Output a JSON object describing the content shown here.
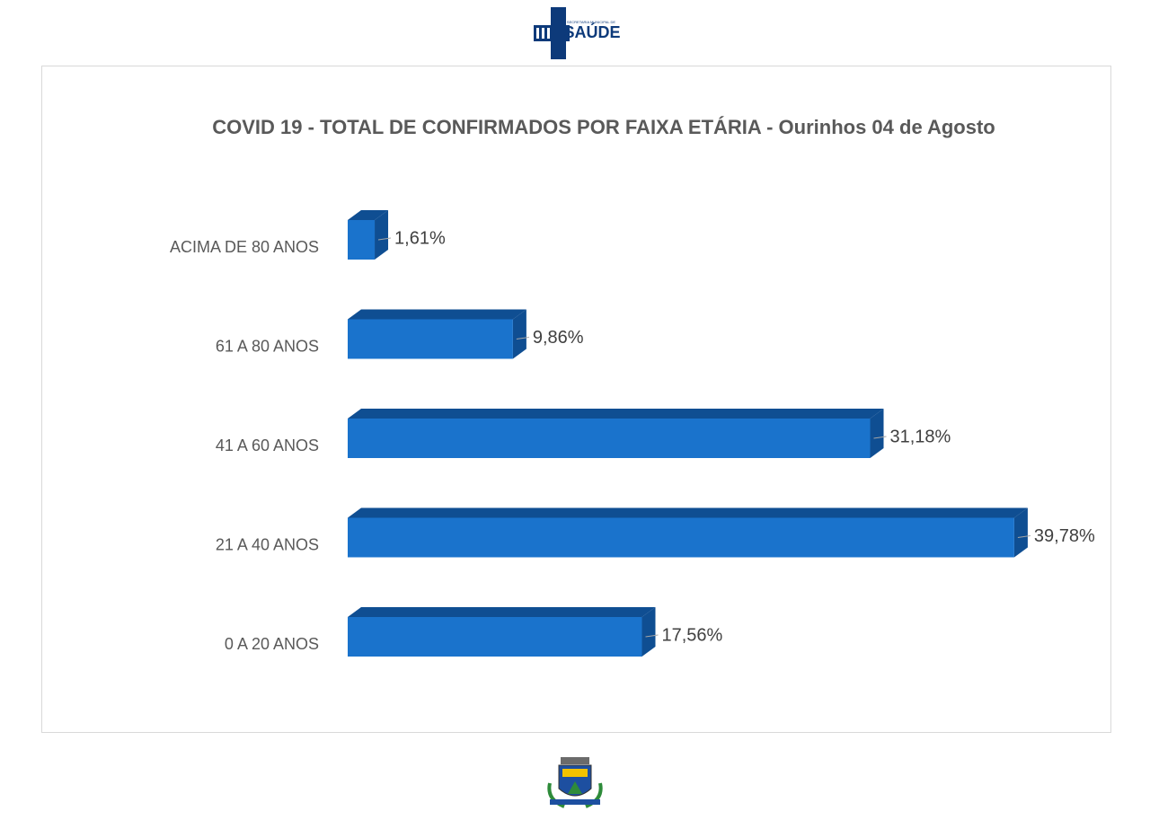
{
  "logo": {
    "caption": "SECRETARIA MUNICIPAL DE",
    "name": "SAÚDE"
  },
  "chart_data": {
    "type": "bar3d-horizontal",
    "title": "COVID 19 - TOTAL DE CONFIRMADOS POR FAIXA ETÁRIA - Ourinhos 04 de Agosto",
    "categories": [
      "ACIMA DE 80 ANOS",
      "61 A 80 ANOS",
      "41 A 60 ANOS",
      "21 A 40 ANOS",
      "0 A 20 ANOS"
    ],
    "values": [
      1.61,
      9.86,
      31.18,
      39.78,
      17.56
    ],
    "value_labels": [
      "1,61%",
      "9,86%",
      "31,18%",
      "39,78%",
      "17,56%"
    ],
    "color": "#1a73cc",
    "side_color": "#0f4e92"
  }
}
